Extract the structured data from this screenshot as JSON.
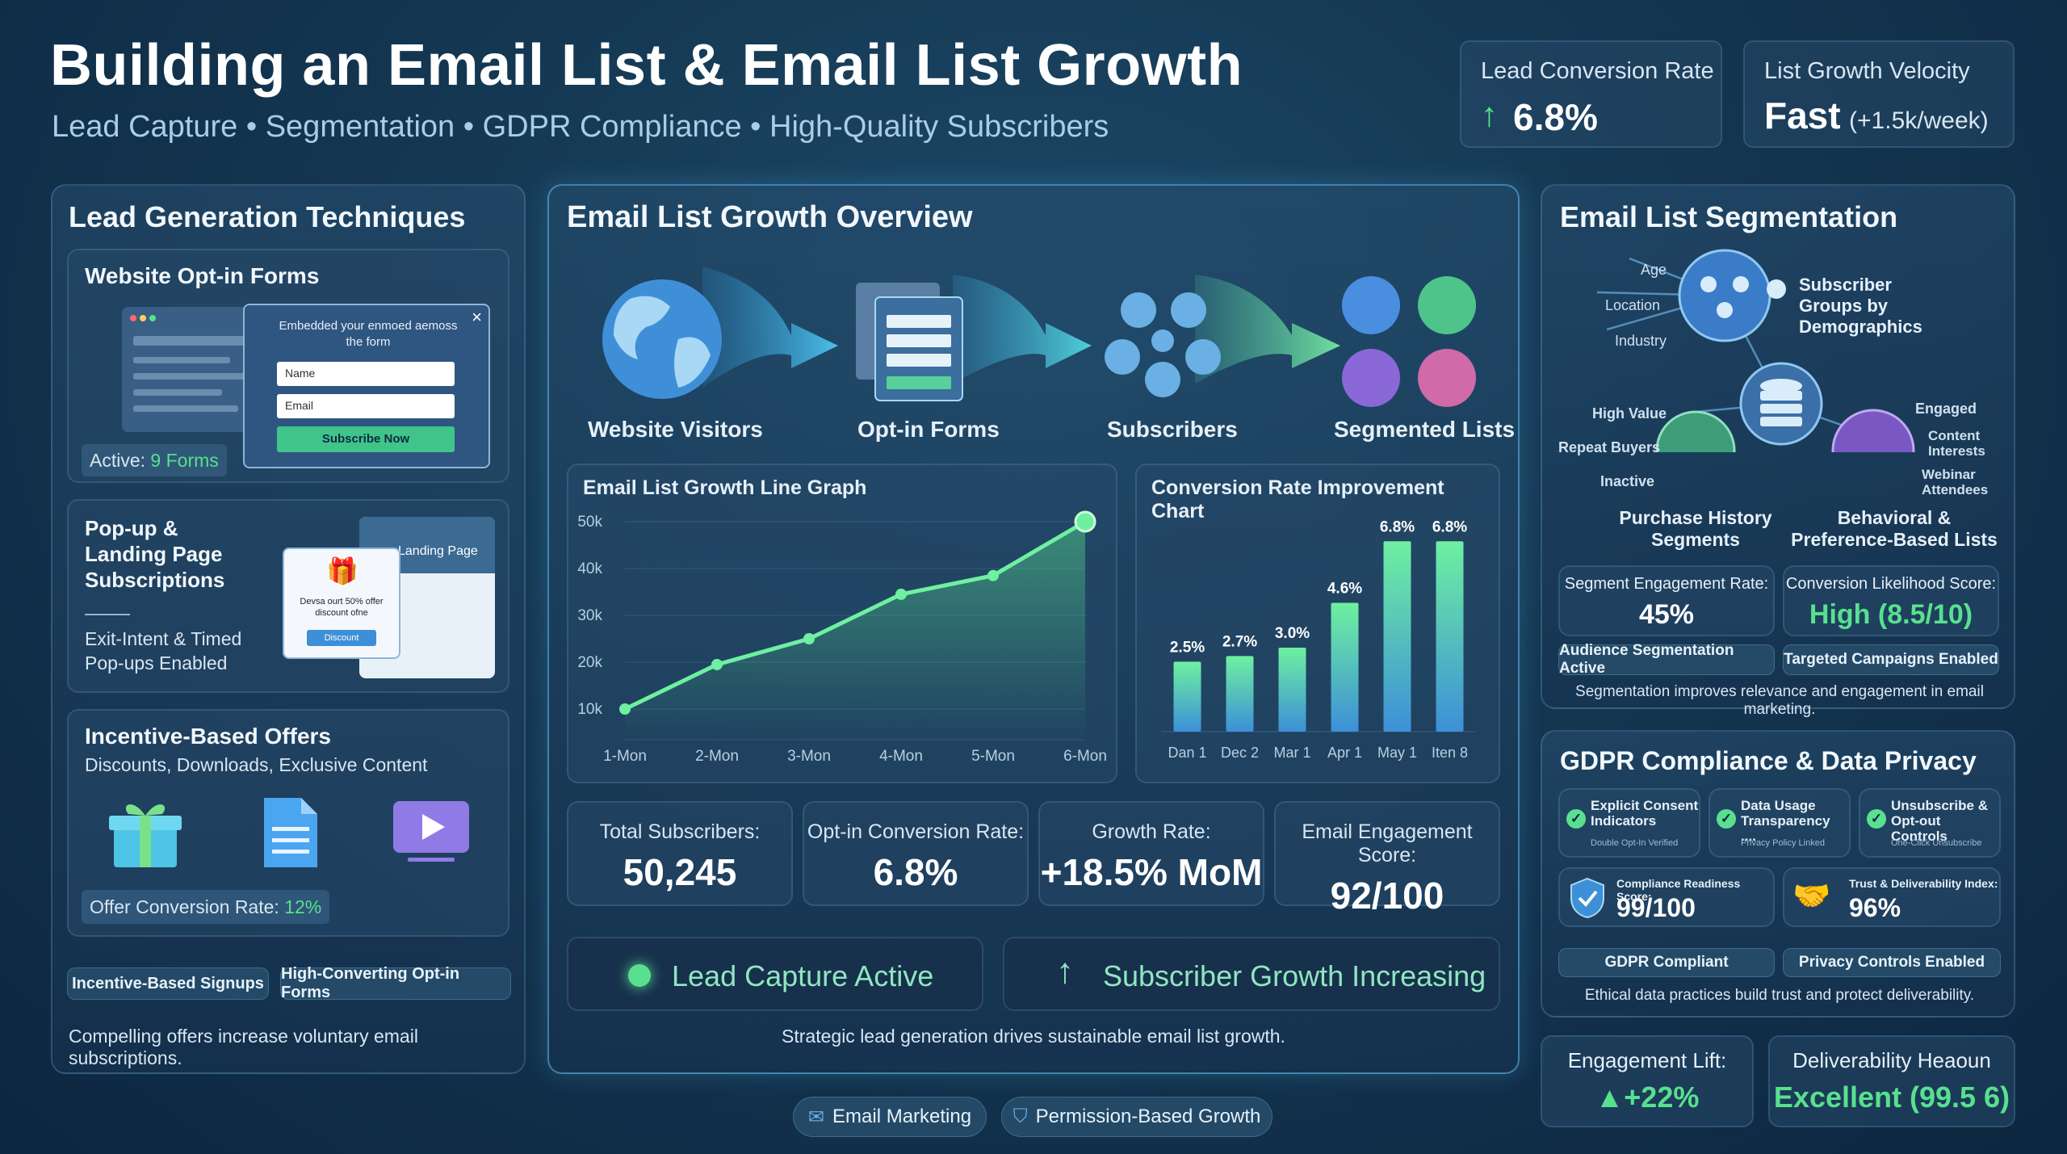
{
  "header": {
    "title": "Building an Email List & Email List Growth",
    "subtitle": "Lead Capture • Segmentation • GDPR Compliance • High-Quality Subscribers"
  },
  "top_kpis": {
    "lcr_label": "Lead Conversion Rate",
    "lcr_value": "6.8%",
    "lgv_label": "List Growth Velocity",
    "lgv_value": "Fast",
    "lgv_note": "(+1.5k/week)"
  },
  "lead_gen": {
    "title": "Lead Generation Techniques",
    "optin": {
      "title": "Website Opt-in Forms",
      "popup_title": "Embedded your enmoed aemoss the form",
      "name_ph": "Name",
      "email_ph": "Email",
      "subscribe": "Subscribe Now",
      "active_label": "Active:",
      "active_value": "9 Forms"
    },
    "popup": {
      "title": "Pop-up & Landing Page Subscriptions",
      "sub": "Exit-Intent & Timed Pop-ups Enabled",
      "landing": "Landing Page",
      "offer": "Devsa ourt 50% offer discount ofne",
      "discount": "Discount"
    },
    "incentive": {
      "title": "Incentive-Based Offers",
      "sub": "Discounts, Downloads, Exclusive Content",
      "conv_label": "Offer Conversion Rate:",
      "conv_value": "12%"
    },
    "tags": [
      "Incentive-Based Signups",
      "High-Converting Opt-in Forms"
    ],
    "footer": "Compelling offers increase voluntary email subscriptions."
  },
  "overview": {
    "title": "Email List Growth Overview",
    "flow": [
      "Website Visitors",
      "Opt-in Forms",
      "Subscribers",
      "Segmented Lists"
    ],
    "metrics": [
      {
        "label": "Total Subscribers:",
        "value": "50,245"
      },
      {
        "label": "Opt-in Conversion Rate:",
        "value": "6.8%"
      },
      {
        "label": "Growth Rate:",
        "value": "+18.5% MoM"
      },
      {
        "label": "Email Engagement Score:",
        "value": "92/100"
      }
    ],
    "status": [
      "Lead Capture Active",
      "Subscriber Growth Increasing"
    ],
    "footer": "Strategic lead generation drives sustainable email list growth."
  },
  "chart_data": [
    {
      "type": "line",
      "title": "Email List Growth Line Graph",
      "categories": [
        "1-Mon",
        "2-Mon",
        "3-Mon",
        "4-Mon",
        "5-Mon",
        "6-Mon"
      ],
      "yticks": [
        "50k",
        "40k",
        "30k",
        "20k",
        "10k"
      ],
      "values": [
        10000,
        19500,
        25000,
        34500,
        38500,
        50000
      ],
      "ylim": [
        0,
        50000
      ],
      "grid": true
    },
    {
      "type": "bar",
      "title": "Conversion Rate Improvement Chart",
      "categories": [
        "Dan 1",
        "Dec 2",
        "Mar 1",
        "Apr 1",
        "May 1",
        "Iten 8"
      ],
      "values": [
        2.5,
        2.7,
        3.0,
        4.6,
        6.8,
        6.8
      ],
      "labels": [
        "2.5%",
        "2.7%",
        "3.0%",
        "4.6%",
        "6.8%",
        "6.8%"
      ],
      "ylim": [
        0,
        7.5
      ]
    }
  ],
  "segmentation": {
    "title": "Email List Segmentation",
    "demo_tags": [
      "Age",
      "Location",
      "Industry"
    ],
    "demo_label": "Subscriber Groups by Demographics",
    "purchase_tags": [
      "High Value",
      "Repeat Buyers",
      "Inactive"
    ],
    "purchase_label": "Purchase History Segments",
    "behav_tags": [
      "Engaged",
      "Content Interests",
      "Webinar Attendees"
    ],
    "behav_label": "Behavioral & Preference-Based Lists",
    "ser_label": "Segment Engagement Rate:",
    "ser_value": "45%",
    "cls_label": "Conversion Likelihood Score:",
    "cls_value": "High (8.5/10)",
    "tags": [
      "Audience Segmentation Active",
      "Targeted Campaigns Enabled"
    ],
    "footer": "Segmentation improves relevance and engagement in email marketing."
  },
  "gdpr": {
    "title": "GDPR Compliance & Data Privacy",
    "items": [
      {
        "t": "Explicit Consent Indicators",
        "s": "Double Opt-In Verified"
      },
      {
        "t": "Data Usage Transparency ....",
        "s": "Privacy Policy Linked"
      },
      {
        "t": "Unsubscribe & Opt-out Controls",
        "s": "One-Click Unsubscribe"
      }
    ],
    "crs_label": "Compliance Readiness Score:",
    "crs_value": "99/100",
    "tdi_label": "Trust & Deliverability Index:",
    "tdi_value": "96%",
    "tags": [
      "GDPR Compliant",
      "Privacy Controls Enabled"
    ],
    "footer": "Ethical data practices build trust and protect deliverability."
  },
  "bottom": {
    "el_label": "Engagement Lift:",
    "el_value": "+22%",
    "dh_label": "Deliverability Heaoun",
    "dh_value": "Excellent (99.5 6)"
  },
  "footer_tags": [
    "Email Marketing",
    "Permission-Based Growth"
  ]
}
